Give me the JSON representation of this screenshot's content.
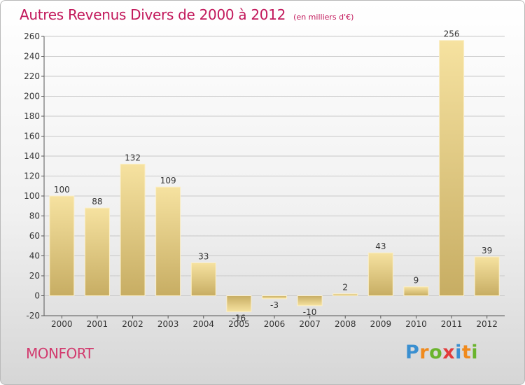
{
  "title": "Autres Revenus Divers de 2000 à 2012",
  "unit_note": "(en milliers d'€)",
  "place": "MONFORT",
  "logo": {
    "letters": [
      "P",
      "r",
      "o",
      "x",
      "i",
      "t",
      "i"
    ],
    "colors": [
      "#3a8fd0",
      "#f08a1c",
      "#6ab42d",
      "#e23b3b",
      "#3a8fd0",
      "#f08a1c",
      "#6ab42d"
    ]
  },
  "colors": {
    "title": "#c2185b",
    "bar_light": "#f6e2a0",
    "bar_dark": "#c7ad63",
    "axis": "#555555",
    "grid": "#c8c8c8",
    "text": "#333333"
  },
  "chart_data": {
    "type": "bar",
    "categories": [
      "2000",
      "2001",
      "2002",
      "2003",
      "2004",
      "2005",
      "2006",
      "2007",
      "2008",
      "2009",
      "2010",
      "2011",
      "2012"
    ],
    "values": [
      100,
      88,
      132,
      109,
      33,
      -16,
      -3,
      -10,
      2,
      43,
      9,
      256,
      39
    ],
    "data_labels": [
      "100",
      "88",
      "132",
      "109",
      "33",
      "-16",
      "-3",
      "-10",
      "2",
      "43",
      "9",
      "256",
      "39"
    ],
    "ylim": [
      -20,
      260
    ],
    "yticks": [
      -20,
      0,
      20,
      40,
      60,
      80,
      100,
      120,
      140,
      160,
      180,
      200,
      220,
      240,
      260
    ],
    "grid": "horizontal",
    "xlabel": "",
    "ylabel": ""
  }
}
